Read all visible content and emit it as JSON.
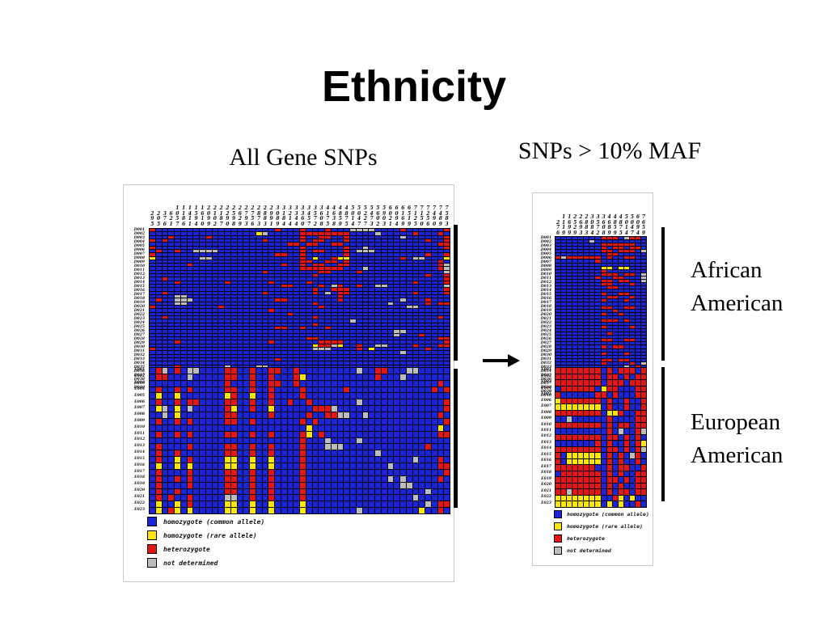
{
  "slide": {
    "title": "Ethnicity"
  },
  "group_labels": {
    "african": "African American",
    "european": "European American"
  },
  "legend": [
    {
      "key": "B",
      "label": "homozygote (common allele)"
    },
    {
      "key": "Y",
      "label": "homozygote (rare allele)"
    },
    {
      "key": "R",
      "label": "heterozygote"
    },
    {
      "key": "G",
      "label": "not determined"
    }
  ],
  "colors": {
    "B": "#1b25d6",
    "Y": "#ffe60a",
    "R": "#e51515",
    "G": "#bdbdbd"
  },
  "chart_data": [
    {
      "type": "heatmap",
      "title": "All Gene SNPs",
      "value_key": {
        "B": "homozygote (common allele)",
        "Y": "homozygote (rare allele)",
        "R": "heterozygote",
        "G": "not determined"
      },
      "groups": [
        {
          "label": "African American",
          "count": 40
        },
        {
          "label": "European American",
          "count": 23
        }
      ],
      "col_labels": [
        "295",
        "205",
        "376",
        "621",
        "1057",
        "1186",
        "1411",
        "1594",
        "1610",
        "2099",
        "2102",
        "2187",
        "2290",
        "2598",
        "2629",
        "2793",
        "2756",
        "2873",
        "2883",
        "2991",
        "3089",
        "3184",
        "3214",
        "3344",
        "3360",
        "3457",
        "3572",
        "3608",
        "4175",
        "4638",
        "4859",
        "4875",
        "5014",
        "5047",
        "5227",
        "5473",
        "5602",
        "5903",
        "6021",
        "6094",
        "6169",
        "6519",
        "7125",
        "7150",
        "7256",
        "7490",
        "7489",
        "7583"
      ],
      "row_labels": [
        "D001",
        "D002",
        "D003",
        "D004",
        "D005",
        "D006",
        "D007",
        "D008",
        "D009",
        "D010",
        "D011",
        "D012",
        "D013",
        "D014",
        "D015",
        "D016",
        "D017",
        "D018",
        "D019",
        "D020",
        "D021",
        "D022",
        "D023",
        "D024",
        "D025",
        "D026",
        "D027",
        "D028",
        "D029",
        "D030",
        "D031",
        "D032",
        "D033",
        "D034",
        "D035",
        "D036",
        "D037",
        "D038",
        "D039",
        "D040",
        "E001",
        "E002",
        "E003",
        "E004",
        "E005",
        "E006",
        "E007",
        "E008",
        "E009",
        "E010",
        "E011",
        "E012",
        "E013",
        "E014",
        "E015",
        "E016",
        "E017",
        "E018",
        "E019",
        "E020",
        "E021",
        "E022",
        "E023"
      ],
      "rows": [
        "RBBBBBBBBBBBBBBBBBBBRBBBRBBBRBBBGGGGBBBBRBBBBBBR",
        "BBBBBBBBBBBBBBBBBYGBBBBBRRRRRRRRBBBBGBBBBBRBBBRB",
        "BBBRBBBBBRBBBBBBBBBBBBBBRBBRRBBRBBBBBBBBGBBBBBBR",
        "RBRBBBBBBBBBBBBBBBRBBBBBRBRRBBBRBBBBBBBBBBBBRBBR",
        "BBBBBBBBBBBBBBBBBBBBBBRRBRRBBRRBBBBBBBBBBBBBBBRR",
        "RBBBBBBBBBBBBBBBBBBBBBBBRBBBBBBRBBGBBBBBBBBBBBBR",
        "BRBBRBBGGGGBBBBBBBBBBBBBRBRRBBBRBGGGBBBBBBBBBBBB",
        "RBBBBBBBBBBBBBBBBBBBRRBBRBBBBBBRBBBBBBBBBBBBRBBR",
        "YBBBBBBBGGBBBBBBBBBBBBBBRBYBBRYYBBBBBBBBRBGGBBBY",
        "BBBBBBBBBBBBBBBBBBBBBBBBRRBBRRBRBBBBBBBBBBBBBBRB",
        "BBBBBBRBBBBBBBBBBBBBBRBBRBRRBBRRBBBBBBBBBBBBBBRG",
        "BBBBBBBBBBBBBBBBBBBBBBBBRRRRRRRBBBGBBBBBBBBBBBRG",
        "BBBBBBBBBBBBBBBBBBRBBBBBBBBRRBBBBRBBBBBBBBBBBBBG",
        "BBBBBBBBBBBBBBBBBBBBBBBBBBRBBBBBBBBBBBBBBBBBRBBR",
        "BBRBBBBBBBBBBBBBBBBBBBBBBBBBBBBBBBBBBBBBBBBBBBBR",
        "BBBBRBBBBBBBRBBBBBBRBBBBBRBBBBBBBBBBBBBBBBRBBBBR",
        "BBBBBBBBBBBBBBBBBBBBBRRBBBBRBGRBBRBBGGBBBBBBBBBG",
        "BBBBBBBBBBBBBBBBBBBBBBBBBBRBBRRRBBBBBBBBBBBBBBBR",
        "BBRBBBBBBBBBBBBBBBRBBBBBBBRBGBRRBBBBBBBBBBRBBBBR",
        "BBBBGGBBBBBBBBBBBBBBBBBBBBBBBBRBBBBBBBBBBBBBBBBB",
        "BRBBGGGBBBBBBBBBBBBBRRBBBBBBBBRBBBBBBBBBGBBBRBBB",
        "BBBBGGBBBBBBBBBBBBBBBBBBBBRBBBBBBBBBBBGBBBBBRBRR",
        "RBBBBBBBBBBRBBBBBBBBBBBBBBBRBBBBBBBBBBBBBGGBBBBB",
        "BBBBBBBBBBBBBBBBBBBRBBBBBBBBBBBBBBBBBBBBBBBBBBBB",
        "BBBBBBBBBBBBBBBBBBBBBBRBBBBBBBBBBBBBBBBBBBBBBBBB",
        "BBRBBBBBBBBBBBBBBBBBBBBBBBRBBBBBBBBBBBBBBBBBBBRB",
        "BBBBBBBBBBBBBBBBBBBBBBBBBBBBBBBBGBBBBBBBBBBBBBBB",
        "BBBBBBBBBBBBBBBBBBBBBBBBBBRBBBBBBBBBBBBBBBBBBBBB",
        "BBBBBBBBBBBBBBBBBBBBRRBBRBBBRBBBBBBBBBBBBBBBBBBB",
        "BBBBBBBBBBBBBBBBBBBBBBBBBBBBBBBBBBBBBBBGGBBBBBBB",
        "BBBBBBBBBBBBBBBBBBBBBBBBBBBBBBBBBBBBBBBGBBBRBBBB",
        "BBBBBBBBBBBBBBBBBBBBBBBBBRRBBBBBBBBBBBBBBBBBBBRR",
        "BBBBRBBBBBBBBBBBBBBRBBBBBBBRRRRBBBBBBBBBBBBBBBBR",
        "BBBBBBBBBBBBBBBBBBBBBBBBBBYRRGYBBRBBGGBBBBRBBBRR",
        "RBBBBBBBBBBBBBBBBBBBBBBBBBGGGBBBBRBYBBBBBBBBRBBB",
        "BBBBBBBBBBBBBBBBBBBBBBBBBBBBBBBBBBBBBBBBGBBBBBBB",
        "BBBBBBBBBBBBBBBBBBBBBBBBBBBBBBBBBBBBBBBBBBBBBBBB",
        "BBBBBBBBBBBBBBBBBBBBRBBBBBBBBBBBBBBBBBBBBBBBBBBB",
        "BBBBBBBBBBBBBBBBBBBBBBBBBBBBBBBBBBBBBBBBBBBBBBBB",
        "BBBBRBBBBBBBGBBBBGGBBBBBBBBBBBBBBBBBBBBBBBBBBBBB",
        "BRGBRBGGBBBBRRBBRBBRRBBRBBBBBBBBBGBBRRBBBGGBBBBB",
        "BRRBBBGBBBBBRRBBRBBRBBBRYBBBBBBBBBBBRBBBGBBBBBBB",
        "BBBBBBBBBBBBRBBBRBBRRBBRBBBBBBBBBBBBBBBBBBBBBBRB",
        "BRBBRBRBBBBBRRBBRBBRBBBBRBBBBBBRBBBBBBBBBBBBBRBR",
        "BYBBYBBBBBBBYRBBYBBRBBBBRBBBBBBBBBBBBBBBBBBBBBBB",
        "BRBBRBRRBBBBRRBBRBBRBBRBBRBBBBBBBGBBBBBBBBBBBBBR",
        "BYGBYBGBBBBBRYBBRBBYBBBBBBRRRGBBBBBBBBBBBBBBBBBR",
        "BBGBYBBBBBBBRRBBBBBRBBBBBRBBRRGGBBGBBBBBBBBBBBRB",
        "BRBBRBRBBBBBRRBBRBBBBBBBRBRBBBBBBBBBBBBBBBBBBBBR",
        "BBBBBBBBBBBBBBBBBBBBBBBBBYBBBBBBBBBBBBBBBBBBBBYB",
        "BRBBRBRBBBBBRRBBRBBRBBBBRYBRBBBBBBBBBBBBBBBBBBRR",
        "BBBBBBBBBBBBBBBBBBBBBBBBRBBBGBBBBGBBBBBBBBBBBBBB",
        "BRBBBBRBBBBBRRBBRBBRBBBBRBBBGGGBBBBBBBBBBBBBRBBB",
        "BRBBRBBBBBBBRRBBRBBRBBBBRBBBBBBBBBBBGBBBBBBBBBBB",
        "BRBBYBRBBBBBYYBBYBBYBBBBRBBBBBBBBBBBBBBBBBGBBBRB",
        "BYBBYBYBBBBBYYBBYBBYBBBBRBBBBBBBBBBBBBGBBBBBBBRR",
        "BRBBBBRBBBBBRRBBRBBRBBBBRBBBBBBBBBBBBBBBBBBBBBBR",
        "BRBBRBRBBBBBRRBBRBBRBBBBRBBBBBBBBBBBBBGBGBBBBBRB",
        "BRBBBBRBBBBBRRBBRBBRBBBBRBBBBBBBBBBBBBBBGGBBBBBB",
        "BRBBRBBBBBBBRRBBRBBRBBBBRBBBBBBBBBBBBBBBBBBBGBBB",
        "BRBRBBRBBBBBGGBBRBBRBBBBRBBBBBBBBBBBBBBBBBGBBBBB",
        "BYBBYBRBBBBBYYBBYBBYBBBBYBBBBBBBBBBBBBBBBBBBGBRR",
        "BYBRYBYBBBBBYYBBYBBYBBBBYBBBBBBBBGBBBBBBBBBYBBRB"
      ]
    },
    {
      "type": "heatmap",
      "title": "SNPs > 10% MAF",
      "value_key": {
        "B": "homozygote (common allele)",
        "Y": "homozygote (rare allele)",
        "R": "heterozygote",
        "G": "not determined"
      },
      "groups": [
        {
          "label": "African American",
          "count": 40
        },
        {
          "label": "European American",
          "count": 23
        }
      ],
      "col_labels": [
        "276",
        "1119",
        "1699",
        "2529",
        "2693",
        "2883",
        "3084",
        "3572",
        "3608",
        "4689",
        "4859",
        "4875",
        "5014",
        "5047",
        "6094",
        "7659"
      ],
      "row_labels": [
        "D001",
        "D002",
        "D003",
        "D004",
        "D005",
        "D006",
        "D007",
        "D008",
        "D009",
        "D010",
        "D011",
        "D012",
        "D013",
        "D014",
        "D015",
        "D016",
        "D017",
        "D018",
        "D019",
        "D020",
        "D021",
        "D022",
        "D023",
        "D024",
        "D025",
        "D026",
        "D027",
        "D028",
        "D029",
        "D030",
        "D031",
        "D032",
        "D033",
        "D034",
        "D035",
        "D036",
        "D037",
        "D038",
        "D039",
        "D040",
        "E001",
        "E002",
        "E003",
        "E004",
        "E005",
        "E006",
        "E007",
        "E008",
        "E009",
        "E010",
        "E011",
        "E012",
        "E013",
        "E014",
        "E015",
        "E016",
        "E017",
        "E018",
        "E019",
        "E020",
        "E021",
        "E022",
        "E023"
      ],
      "rows": [
        "BBBBBBBBRRRBGRRB",
        "BBBBBBGBBBBBBBBB",
        "BBBBBBBBRRRRRRBB",
        "BBBBBBBBRBRRBRRB",
        "BBBBBBBBRRBRRRBG",
        "BBBBBBBBBRRBBBBB",
        "RGRRRRRRBRBBRRBB",
        "BBBBBBBRBBBBBBBB",
        "BBBBBBBBBBBBBBBB",
        "BBBBBBBBYYBYYBBB",
        "BBBBBBBBRBBBBBBB",
        "BBBBBBBBRRRBRRBG",
        "BBBBBBBRBBRRBBBG",
        "BBBBBBBBRRBRRBBG",
        "BBBBBBBBRRBBBRBB",
        "BBBBBBBBBRRBBBBB",
        "BBBBBBBBBBBBBBBB",
        "BBBBBBBBRBBRRBBB",
        "BBBBBBBBBRRBBRBB",
        "BBBBBBBBRBBBRBBB",
        "BBBBBBBBBBBBBBBB",
        "BBBBBBBBRRBBRRBB",
        "BBBBBBBBBBRBBBBB",
        "BBBBBBBBRBBRBBBB",
        "BBBBBBBBBBBBBBBB",
        "BBBBBBBBRRRBRBBB",
        "BBBBBBBBBBBBBBBB",
        "BBBBBBBBRBBBBRBB",
        "BBBBBBBBBBBBBBBB",
        "BBBBBBBBBRBBBBBB",
        "BBBBBBBBBBBBBBBB",
        "BBBBBBBBRRBBRRBB",
        "BBBBBBBBBBBBBBBB",
        "BBBBBBBBRBRRBBBB",
        "BBBBBBBBBBBBBBBB",
        "BBBBBBBBRBBBRBBB",
        "BBBBBBBBBBBBBBBB",
        "BBBBBBBBRRBRRBBB",
        "BBBBBBBBRBBBBRBG",
        "BBBBBBBBBBBBGBRB",
        "RRRRRRRRBRBRRRBR",
        "RRRRRRRRBRRBRBRR",
        "RRRRRRRRBRRRBRRR",
        "BRRRRRRBYRRBBBRR",
        "RBBBBBBRRBRBBBRR",
        "YRRRRRRRBRBBRBBR",
        "YYYYYYYYBRBBRBBR",
        "RRRRRRRRBYYRBBRR",
        "BBGBBBBBBRBBBBRR",
        "RRRRRRRRBRBRRBRR",
        "BBBBBBBBBRBGBBRG",
        "RRRRRRRRBRRBRBRB",
        "BBBBBBBRBRBBRBRY",
        "RRRRRRRRBRRBRBRG",
        "RBYYYYYYBRBRBGRB",
        "RBYYYYYYBRBRBBRB",
        "RRRRRRRBBRBRRBBR",
        "BRRRRRRRBRBRBBRR",
        "RRRRRRRRBRRBRBRR",
        "RRRRRRRRBRBRBBRR",
        "RRGRRRRRBRBRRBRR",
        "YYYYYYYYBBRYBYBB",
        "YYYYYYYYBYBYBBRB"
      ]
    }
  ]
}
